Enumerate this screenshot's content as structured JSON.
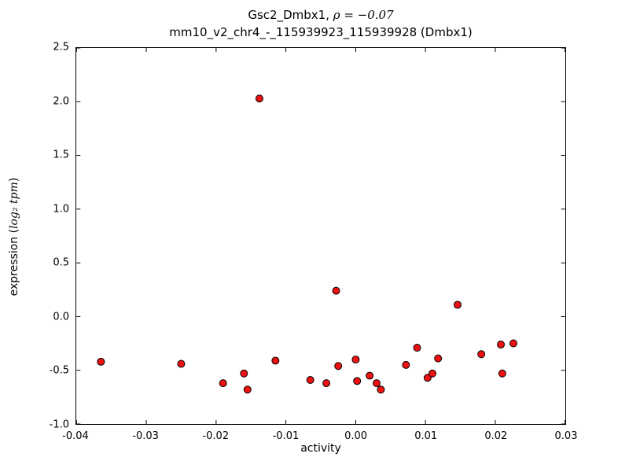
{
  "figure": {
    "title_prefix": "Gsc2_Dmbx1, ",
    "title_math": "ρ = −0.07",
    "subtitle": "mm10_v2_chr4_-_115939923_115939928 (Dmbx1)",
    "xlabel": "activity",
    "ylabel_prefix": "expression (",
    "ylabel_math": "log₂ tpm",
    "ylabel_suffix": ")"
  },
  "chart_data": {
    "type": "scatter",
    "title": "Gsc2_Dmbx1, ρ = −0.07",
    "subtitle": "mm10_v2_chr4_-_115939923_115939928 (Dmbx1)",
    "xlabel": "activity",
    "ylabel": "expression (log2 tpm)",
    "xlim": [
      -0.04,
      0.03
    ],
    "ylim": [
      -1.0,
      2.5
    ],
    "xticks": [
      -0.04,
      -0.03,
      -0.02,
      -0.01,
      0.0,
      0.01,
      0.02,
      0.03
    ],
    "xtick_labels": [
      "-0.04",
      "-0.03",
      "-0.02",
      "-0.01",
      "0.00",
      "0.01",
      "0.02",
      "0.03"
    ],
    "yticks": [
      -1.0,
      -0.5,
      0.0,
      0.5,
      1.0,
      1.5,
      2.0,
      2.5
    ],
    "ytick_labels": [
      "-1.0",
      "-0.5",
      "0.0",
      "0.5",
      "1.0",
      "1.5",
      "2.0",
      "2.5"
    ],
    "grid": false,
    "legend": null,
    "marker": {
      "shape": "circle",
      "fill": "#ee1111",
      "edge": "#000000",
      "radius": 4.5
    },
    "points": [
      [
        -0.0365,
        -0.42
      ],
      [
        -0.025,
        -0.44
      ],
      [
        -0.019,
        -0.62
      ],
      [
        -0.016,
        -0.53
      ],
      [
        -0.0155,
        -0.68
      ],
      [
        -0.0138,
        2.03
      ],
      [
        -0.0115,
        -0.41
      ],
      [
        -0.0065,
        -0.59
      ],
      [
        -0.0042,
        -0.62
      ],
      [
        -0.0028,
        0.24
      ],
      [
        -0.0025,
        -0.46
      ],
      [
        0.0,
        -0.4
      ],
      [
        0.0002,
        -0.6
      ],
      [
        0.002,
        -0.55
      ],
      [
        0.003,
        -0.62
      ],
      [
        0.0036,
        -0.68
      ],
      [
        0.0072,
        -0.45
      ],
      [
        0.0088,
        -0.29
      ],
      [
        0.0103,
        -0.57
      ],
      [
        0.011,
        -0.53
      ],
      [
        0.0118,
        -0.39
      ],
      [
        0.0146,
        0.11
      ],
      [
        0.018,
        -0.35
      ],
      [
        0.0208,
        -0.26
      ],
      [
        0.021,
        -0.53
      ],
      [
        0.0226,
        -0.25
      ]
    ]
  }
}
